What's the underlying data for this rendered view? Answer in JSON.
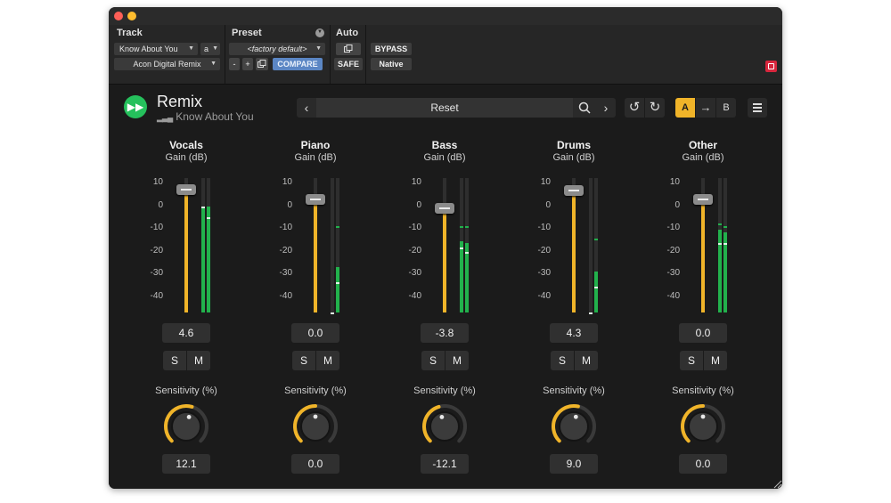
{
  "host": {
    "track_label": "Track",
    "preset_label": "Preset",
    "auto_label": "Auto",
    "track_name": "Know About You",
    "track_suffix": "a",
    "plugin_name": "Acon Digital Remix",
    "factory_default": "<factory default>",
    "minus": "-",
    "plus": "+",
    "compare": "COMPARE",
    "safe": "SAFE",
    "bypass": "BYPASS",
    "native": "Native"
  },
  "plugin": {
    "title": "Remix",
    "subtitle": "Know About You",
    "preset_name": "Reset",
    "ab_a": "A",
    "ab_b": "B",
    "accent_color": "#f0b429",
    "meter_color": "#22b14c",
    "logo_color": "#25c05c"
  },
  "scale_ticks": [
    "10",
    "0",
    "-10",
    "-20",
    "-30",
    "-40"
  ],
  "gain_label": "Gain (dB)",
  "sensitivity_label": "Sensitivity (%)",
  "solo_label": "S",
  "mute_label": "M",
  "channels": [
    {
      "name": "Vocals",
      "gain": "4.6",
      "gain_db": 4.6,
      "sensitivity": "12.1",
      "sensitivity_pct": 12.1,
      "meter_left": {
        "level_db": -3,
        "peak_db": -3,
        "rms_db": -3
      },
      "meter_right": {
        "level_db": -3,
        "peak_db": -3,
        "rms_db": -8
      }
    },
    {
      "name": "Piano",
      "gain": "0.0",
      "gain_db": 0.0,
      "sensitivity": "0.0",
      "sensitivity_pct": 0.0,
      "meter_left": {
        "level_db": -52,
        "peak_db": -52,
        "rms_db": -52
      },
      "meter_right": {
        "level_db": -31,
        "peak_db": -12,
        "rms_db": -38
      }
    },
    {
      "name": "Bass",
      "gain": "-3.8",
      "gain_db": -3.8,
      "sensitivity": "-12.1",
      "sensitivity_pct": -12.1,
      "meter_left": {
        "level_db": -19,
        "peak_db": -12,
        "rms_db": -22
      },
      "meter_right": {
        "level_db": -20,
        "peak_db": -12,
        "rms_db": -24
      }
    },
    {
      "name": "Drums",
      "gain": "4.3",
      "gain_db": 4.3,
      "sensitivity": "9.0",
      "sensitivity_pct": 9.0,
      "meter_left": {
        "level_db": -52,
        "peak_db": -52,
        "rms_db": -52
      },
      "meter_right": {
        "level_db": -33,
        "peak_db": -18,
        "rms_db": -40
      }
    },
    {
      "name": "Other",
      "gain": "0.0",
      "gain_db": 0.0,
      "sensitivity": "0.0",
      "sensitivity_pct": 0.0,
      "meter_left": {
        "level_db": -14,
        "peak_db": -11,
        "rms_db": -20
      },
      "meter_right": {
        "level_db": -15,
        "peak_db": -12,
        "rms_db": -20
      }
    }
  ]
}
